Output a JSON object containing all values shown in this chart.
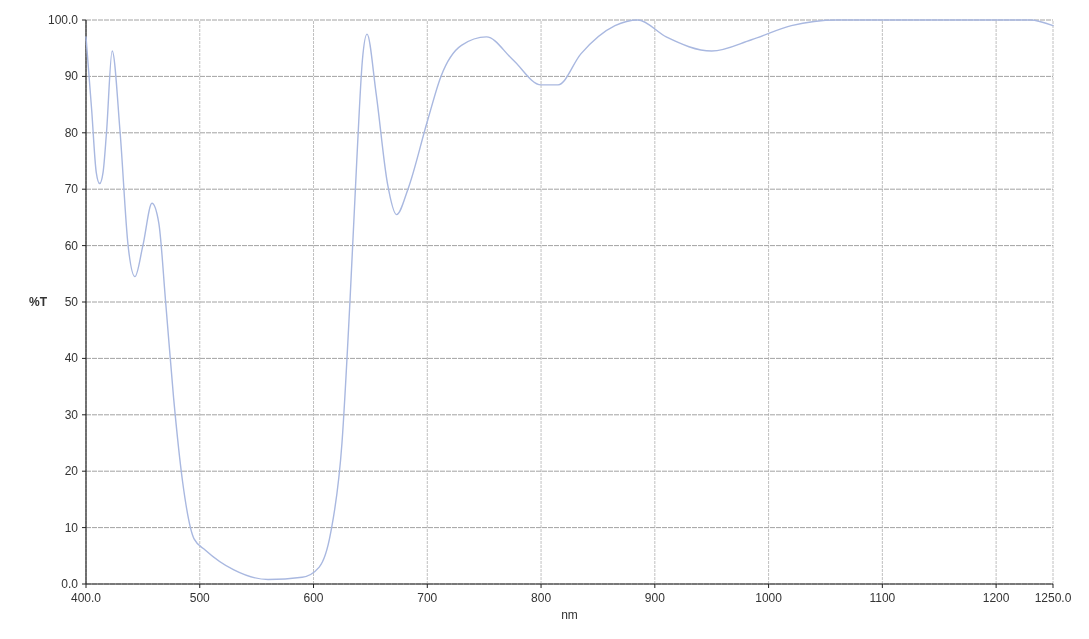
{
  "chart_data": {
    "type": "line",
    "xlabel": "nm",
    "ylabel": "%T",
    "xlim": [
      400,
      1250
    ],
    "ylim": [
      0,
      100
    ],
    "xticks": [
      {
        "value": 400,
        "label": "400.0"
      },
      500,
      600,
      700,
      800,
      900,
      1000,
      1100,
      1200,
      {
        "value": 1250,
        "label": "1250.0"
      }
    ],
    "yticks": [
      {
        "value": 0,
        "label": "0.0"
      },
      10,
      20,
      30,
      40,
      50,
      60,
      70,
      80,
      90,
      {
        "value": 100,
        "label": "100.0"
      }
    ],
    "grid": true,
    "series": [
      {
        "color": "#a9b8e0",
        "x": [
          400,
          405,
          409,
          412,
          415,
          418,
          423,
          430,
          437,
          443,
          450,
          458,
          464,
          470,
          477,
          485,
          495,
          505,
          530,
          560,
          590,
          605,
          615,
          625,
          632,
          638,
          643,
          647,
          655,
          665,
          673,
          683,
          700,
          712,
          730,
          752,
          775,
          800,
          815,
          835,
          865,
          885,
          910,
          950,
          985,
          1020,
          1060,
          1100,
          1200,
          1230,
          1250
        ],
        "values": [
          97,
          84,
          73,
          71,
          73,
          80,
          94.5,
          80,
          60,
          54.5,
          60,
          67.5,
          64,
          50,
          33,
          18,
          8,
          6,
          2.5,
          0.8,
          1.2,
          3,
          9,
          25,
          50,
          75,
          93,
          97.5,
          87,
          71,
          65.5,
          70,
          82,
          90,
          95.5,
          97,
          93,
          88.5,
          88.5,
          94,
          99,
          100,
          97,
          94.5,
          96.5,
          99,
          100,
          100,
          100,
          100,
          99
        ]
      }
    ]
  }
}
